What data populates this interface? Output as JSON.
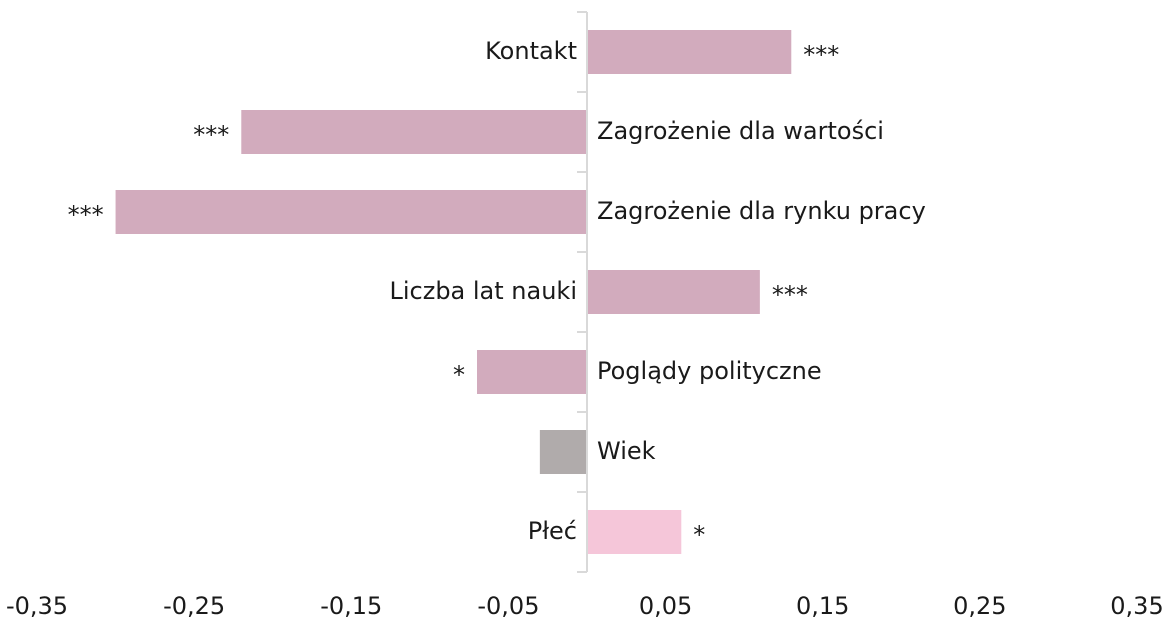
{
  "chart_data": {
    "type": "bar",
    "orientation": "horizontal",
    "categories": [
      "Kontakt",
      "Zagrożenie dla wartości",
      "Zagrożenie dla rynku pracy",
      "Liczba lat nauki",
      "Poglądy polityczne",
      "Wiek",
      "Płeć"
    ],
    "values": [
      0.13,
      -0.22,
      -0.3,
      0.11,
      -0.07,
      -0.03,
      0.06
    ],
    "annotations": [
      "***",
      "***",
      "***",
      "***",
      "*",
      null,
      "*"
    ],
    "colors": [
      "#d2abbd",
      "#d2abbd",
      "#d2abbd",
      "#d2abbd",
      "#d2abbd",
      "#b0abab",
      "#f5c6d9"
    ],
    "xlim": [
      -0.35,
      0.35
    ],
    "xticks": [
      {
        "value": -0.35,
        "label": "-0,35"
      },
      {
        "value": -0.25,
        "label": "-0,25"
      },
      {
        "value": -0.15,
        "label": "-0,15"
      },
      {
        "value": -0.05,
        "label": "-0,05"
      },
      {
        "value": 0.05,
        "label": "0,05"
      },
      {
        "value": 0.15,
        "label": "0,15"
      },
      {
        "value": 0.25,
        "label": "0,25"
      },
      {
        "value": 0.35,
        "label": "0,35"
      }
    ]
  }
}
